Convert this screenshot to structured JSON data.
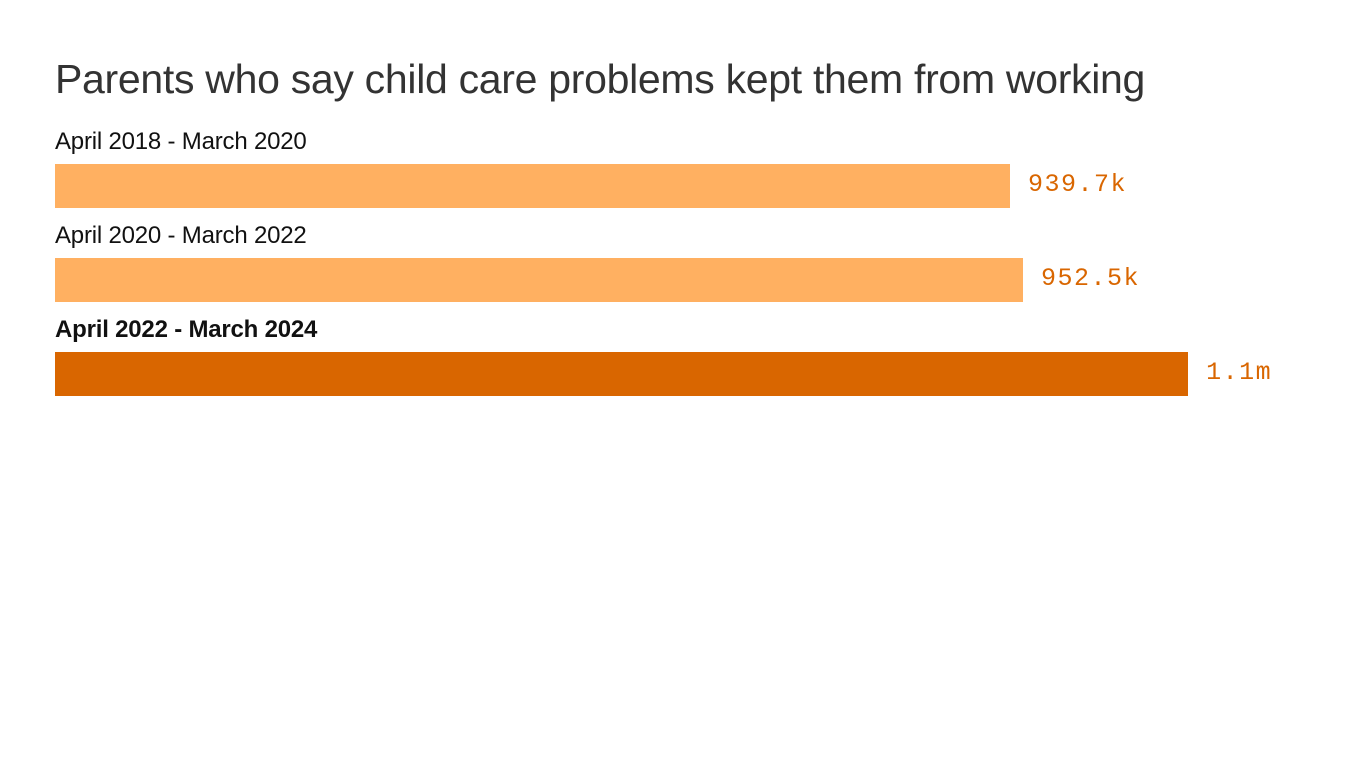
{
  "chart_data": {
    "type": "bar",
    "orientation": "horizontal",
    "title": "Parents who say child care problems kept them from working",
    "categories": [
      "April 2018 - March 2020",
      "April 2020 - March 2022",
      "April 2022 - March 2024"
    ],
    "values": [
      939700,
      952500,
      1115000
    ],
    "data_labels": [
      "939.7k",
      "952.5k",
      "1.1m"
    ],
    "highlighted_index": 2,
    "colors": {
      "bar": "#FFB061",
      "highlight": "#D96600",
      "label": "#D96600",
      "title": "#333333"
    },
    "xlabel": "",
    "ylabel": "",
    "grid": false
  }
}
